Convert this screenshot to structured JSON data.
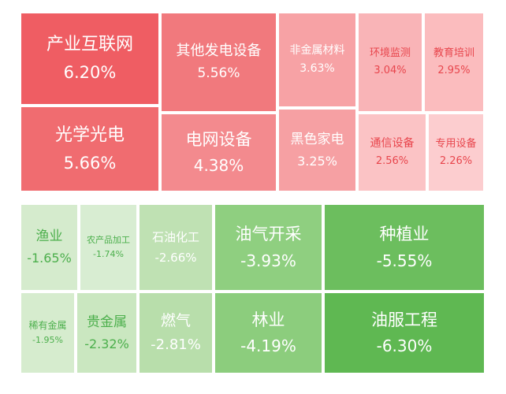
{
  "chart_data": {
    "type": "treemap",
    "groups": [
      {
        "name": "",
        "tiles": [
          {
            "label": "产业互联网",
            "value": 6.2,
            "display": "6.20%",
            "color": "#ef5d63"
          },
          {
            "label": "光学光电",
            "value": 5.66,
            "display": "5.66%",
            "color": "#f06c70"
          },
          {
            "label": "其他发电设备",
            "value": 5.56,
            "display": "5.56%",
            "color": "#f1797d"
          },
          {
            "label": "电网设备",
            "value": 4.38,
            "display": "4.38%",
            "color": "#f38a8e"
          },
          {
            "label": "非金属材料",
            "value": 3.63,
            "display": "3.63%",
            "color": "#f7a2a5"
          },
          {
            "label": "黑色家电",
            "value": 3.25,
            "display": "3.25%",
            "color": "#f6a0a3"
          },
          {
            "label": "环境监测",
            "value": 3.04,
            "display": "3.04%",
            "color": "#f9b4b7"
          },
          {
            "label": "教育培训",
            "value": 2.95,
            "display": "2.95%",
            "color": "#fbbcbe"
          },
          {
            "label": "通信设备",
            "value": 2.56,
            "display": "2.56%",
            "color": "#fbc3c5"
          },
          {
            "label": "专用设备",
            "value": 2.26,
            "display": "2.26%",
            "color": "#fccdcf"
          }
        ]
      },
      {
        "name": "",
        "tiles": [
          {
            "label": "渔业",
            "value": -1.65,
            "display": "-1.65%",
            "color": "#d5ebcd"
          },
          {
            "label": "农产品加工",
            "value": -1.74,
            "display": "-1.74%",
            "color": "#d8edd2"
          },
          {
            "label": "石油化工",
            "value": -2.66,
            "display": "-2.66%",
            "color": "#bfe1b3"
          },
          {
            "label": "油气开采",
            "value": -3.93,
            "display": "-3.93%",
            "color": "#8fcf80"
          },
          {
            "label": "种植业",
            "value": -5.55,
            "display": "-5.55%",
            "color": "#6cbe5e"
          },
          {
            "label": "稀有金属",
            "value": -1.95,
            "display": "-1.95%",
            "color": "#d6ecce"
          },
          {
            "label": "贵金属",
            "value": -2.32,
            "display": "-2.32%",
            "color": "#cae7c0"
          },
          {
            "label": "燃气",
            "value": -2.81,
            "display": "-2.81%",
            "color": "#b8deab"
          },
          {
            "label": "林业",
            "value": -4.19,
            "display": "-4.19%",
            "color": "#8ccd7d"
          },
          {
            "label": "油服工程",
            "value": -6.3,
            "display": "-6.30%",
            "color": "#5fb852"
          }
        ]
      }
    ]
  }
}
